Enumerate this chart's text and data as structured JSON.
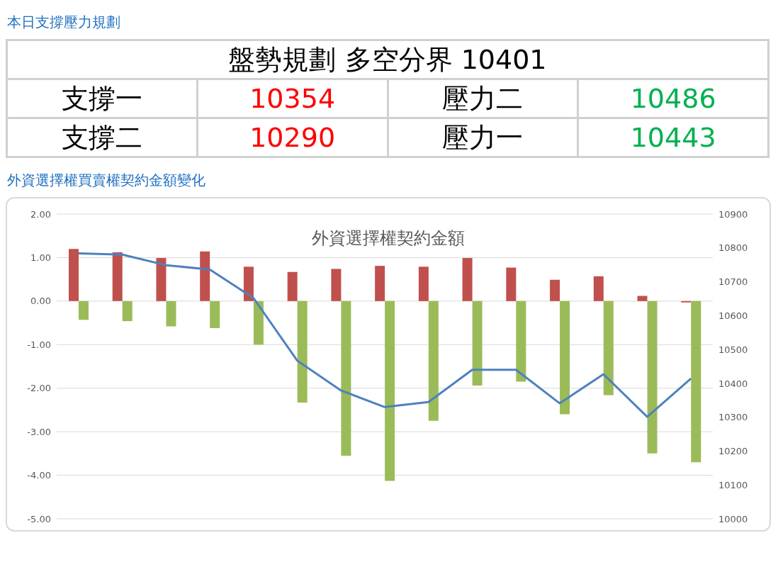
{
  "chart_data": [
    {
      "type": "other",
      "title": "本日支撐壓力規劃",
      "annotations": [
        "盤勢規劃 多空分界 10401",
        "支撐一",
        "10354",
        "壓力二",
        "10486",
        "支撐二",
        "10290",
        "壓力一",
        "10443"
      ],
      "colors": [
        "#000000",
        "#000000",
        "#ff0000",
        "#000000",
        "#00b050",
        "#000000",
        "#ff0000",
        "#000000",
        "#00b050"
      ]
    },
    {
      "type": "bar",
      "title": "外資選擇權買賣權契約金額變化",
      "subtitle": "外資選擇權契約金額",
      "categories": [
        null,
        null,
        null,
        null,
        null,
        null,
        null,
        null,
        null,
        null,
        null,
        null,
        null,
        null,
        null
      ],
      "series": [
        {
          "type": "bar",
          "color": "#c0504d",
          "values": [
            1.2,
            1.12,
            0.99,
            1.14,
            0.79,
            0.67,
            0.74,
            0.81,
            0.79,
            0.99,
            0.77,
            0.49,
            0.57,
            0.12,
            -0.03
          ]
        },
        {
          "type": "bar",
          "color": "#9bbb59",
          "values": [
            -0.43,
            -0.46,
            -0.58,
            -0.62,
            -1.0,
            -2.33,
            -3.55,
            -4.13,
            -2.75,
            -1.94,
            -1.85,
            -2.6,
            -2.16,
            -3.5,
            -3.7
          ]
        },
        {
          "type": "line",
          "axis": "y2",
          "color": "#4f81bd",
          "values": [
            10784,
            10780,
            10749,
            10736,
            10652,
            10467,
            10379,
            10330,
            10345,
            10440,
            10440,
            10341,
            10427,
            10301,
            10414
          ]
        }
      ],
      "ylim": [
        -5,
        2
      ],
      "yticks": [
        {
          "value": 2,
          "label": "2.00"
        },
        {
          "value": 1,
          "label": "1.00"
        },
        {
          "value": 0,
          "label": "0.00"
        },
        {
          "value": -1,
          "label": "-1.00"
        },
        {
          "value": -2,
          "label": "-2.00"
        },
        {
          "value": -3,
          "label": "-3.00"
        },
        {
          "value": -4,
          "label": "-4.00"
        },
        {
          "value": -5,
          "label": "-5.00"
        }
      ],
      "y2lim": [
        10000,
        10900
      ],
      "y2ticks": [
        10000,
        10100,
        10200,
        10300,
        10400,
        10500,
        10600,
        10700,
        10800,
        10900
      ],
      "grid": "y",
      "legend": false,
      "marker": "none",
      "line_style": "solid"
    }
  ]
}
